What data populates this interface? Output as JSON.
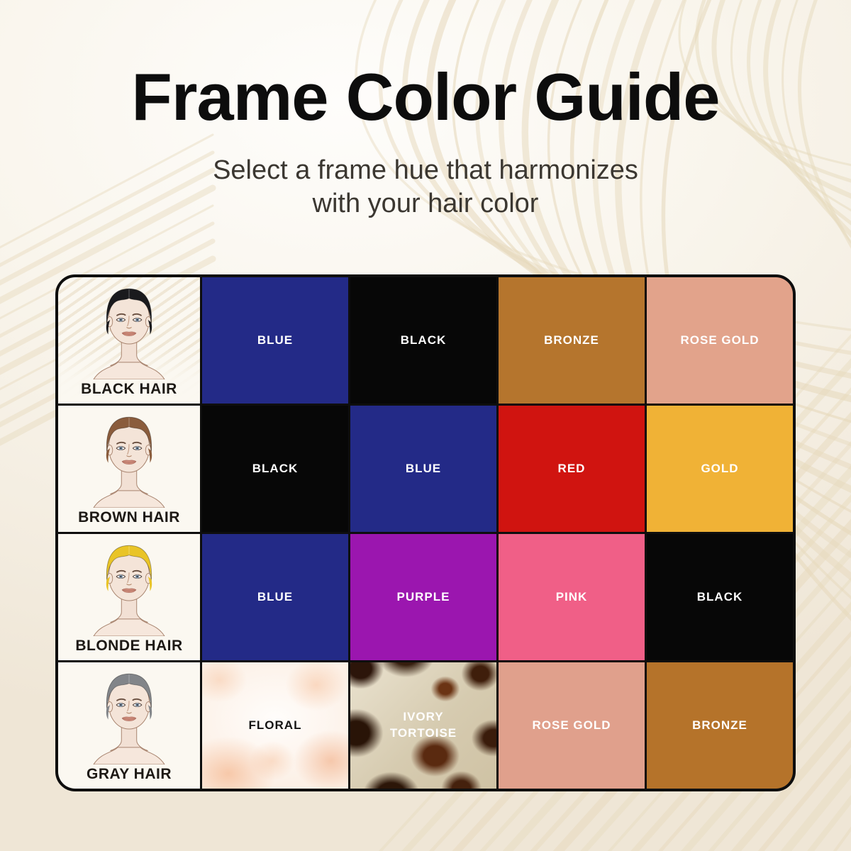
{
  "header": {
    "title": "Frame Color Guide",
    "subtitle_line1": "Select a frame hue that harmonizes",
    "subtitle_line2": "with your hair color"
  },
  "palette": {
    "background_cream": "#f3ecdf",
    "wave_tan": "#e6d9bc",
    "table_border": "#0e0e0e"
  },
  "table": {
    "rows": [
      {
        "hair_label": "BLACK HAIR",
        "hair_color": "#1a1a1d",
        "swatches": [
          {
            "label": "BLUE",
            "bg": "#232a87",
            "fg": "#ffffff"
          },
          {
            "label": "BLACK",
            "bg": "#070707",
            "fg": "#ffffff"
          },
          {
            "label": "BRONZE",
            "bg": "#b5752d",
            "fg": "#ffffff"
          },
          {
            "label": "ROSE GOLD",
            "bg": "#e2a38b",
            "fg": "#ffffff"
          }
        ]
      },
      {
        "hair_label": "BROWN HAIR",
        "hair_color": "#8a5c3c",
        "swatches": [
          {
            "label": "BLACK",
            "bg": "#070707",
            "fg": "#ffffff"
          },
          {
            "label": "BLUE",
            "bg": "#232a87",
            "fg": "#ffffff"
          },
          {
            "label": "RED",
            "bg": "#d01410",
            "fg": "#ffffff"
          },
          {
            "label": "GOLD",
            "bg": "#f0b236",
            "fg": "#ffffff"
          }
        ]
      },
      {
        "hair_label": "BLONDE HAIR",
        "hair_color": "#e9c427",
        "swatches": [
          {
            "label": "BLUE",
            "bg": "#232a87",
            "fg": "#ffffff"
          },
          {
            "label": "PURPLE",
            "bg": "#9b16af",
            "fg": "#ffffff"
          },
          {
            "label": "PINK",
            "bg": "#f05f87",
            "fg": "#ffffff"
          },
          {
            "label": "BLACK",
            "bg": "#070707",
            "fg": "#ffffff"
          }
        ]
      },
      {
        "hair_label": "GRAY HAIR",
        "hair_color": "#828589",
        "swatches": [
          {
            "label": "FLORAL",
            "texture": "floral",
            "fg": "#141414"
          },
          {
            "label": "IVORY TORTOISE",
            "texture": "tortoise",
            "fg": "#ffffff"
          },
          {
            "label": "ROSE GOLD",
            "bg": "#e0a08c",
            "fg": "#ffffff"
          },
          {
            "label": "BRONZE",
            "bg": "#b5732a",
            "fg": "#ffffff"
          }
        ]
      }
    ]
  }
}
